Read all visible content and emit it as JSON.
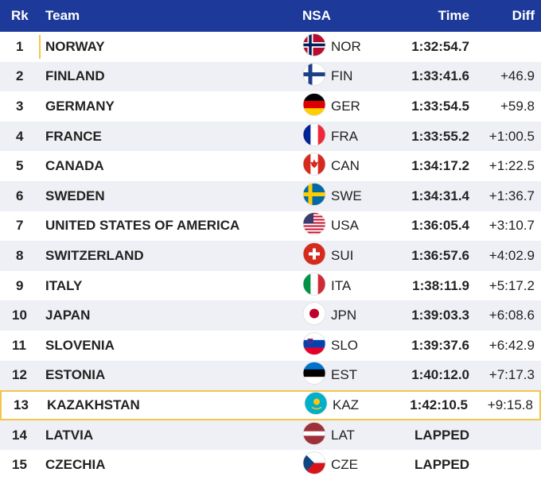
{
  "table": {
    "header": [
      "Rk",
      "Team",
      "NSA",
      "Time",
      "Diff"
    ],
    "rows": [
      {
        "rank": 1,
        "team": "NORWAY",
        "nsa": "NOR",
        "time": "1:32:54.7"
      },
      {
        "rank": 2,
        "team": "FINLAND",
        "nsa": "FIN",
        "time": "1:33:41.6",
        "diff": "+46.9"
      },
      {
        "rank": 3,
        "team": "GERMANY",
        "nsa": "GER",
        "time": "1:33:54.5",
        "diff": "+59.8"
      },
      {
        "rank": 4,
        "team": "FRANCE",
        "nsa": "FRA",
        "time": "1:33:55.2",
        "diff": "+1:00.5"
      },
      {
        "rank": 5,
        "team": "CANADA",
        "nsa": "CAN",
        "time": "1:34:17.2",
        "diff": "+1:22.5"
      },
      {
        "rank": 6,
        "team": "SWEDEN",
        "nsa": "SWE",
        "time": "1:34:31.4",
        "diff": "+1:36.7"
      },
      {
        "rank": 7,
        "team": "UNITED STATES OF AMERICA",
        "nsa": "USA",
        "time": "1:36:05.4",
        "diff": "+3:10.7"
      },
      {
        "rank": 8,
        "team": "SWITZERLAND",
        "nsa": "SUI",
        "time": "1:36:57.6",
        "diff": "+4:02.9"
      },
      {
        "rank": 9,
        "team": "ITALY",
        "nsa": "ITA",
        "time": "1:38:11.9",
        "diff": "+5:17.2"
      },
      {
        "rank": 10,
        "team": "JAPAN",
        "nsa": "JPN",
        "time": "1:39:03.3",
        "diff": "+6:08.6"
      },
      {
        "rank": 11,
        "team": "SLOVENIA",
        "nsa": "SLO",
        "time": "1:39:37.6",
        "diff": "+6:42.9"
      },
      {
        "rank": 12,
        "team": "ESTONIA",
        "nsa": "EST",
        "time": "1:40:12.0",
        "diff": "+7:17.3"
      },
      {
        "rank": 13,
        "team": "KAZAKHSTAN",
        "nsa": "KAZ",
        "time": "1:42:10.5",
        "diff": "+9:15.8"
      },
      {
        "rank": 14,
        "team": "LATVIA",
        "nsa": "LAT",
        "time": "LAPPED"
      },
      {
        "rank": 15,
        "team": "CZECHIA",
        "nsa": "CZE",
        "time": "LAPPED"
      }
    ]
  }
}
